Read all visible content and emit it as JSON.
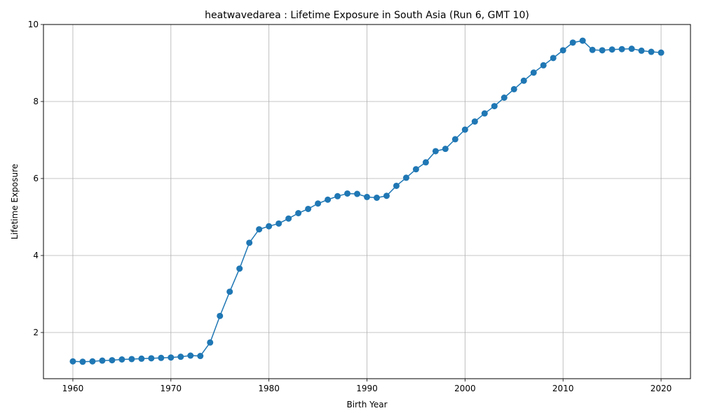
{
  "chart_data": {
    "type": "line",
    "title": "heatwavedarea : Lifetime Exposure in South Asia (Run 6, GMT 10)",
    "xlabel": "Birth Year",
    "ylabel": "Lifetime Exposure",
    "xlim": [
      1957,
      2023
    ],
    "ylim": [
      0.8,
      10
    ],
    "x_ticks": [
      1960,
      1970,
      1980,
      1990,
      2000,
      2010,
      2020
    ],
    "y_ticks": [
      2,
      4,
      6,
      8,
      10
    ],
    "grid": true,
    "marker": "circle",
    "colors": {
      "series": "#1f77b4",
      "grid": "#b0b0b0"
    },
    "series": [
      {
        "x": [
          1960,
          1961,
          1962,
          1963,
          1964,
          1965,
          1966,
          1967,
          1968,
          1969,
          1970,
          1971,
          1972,
          1973,
          1974,
          1975,
          1976,
          1977,
          1978,
          1979,
          1980,
          1981,
          1982,
          1983,
          1984,
          1985,
          1986,
          1987,
          1988,
          1989,
          1990,
          1991,
          1992,
          1993,
          1994,
          1995,
          1996,
          1997,
          1998,
          1999,
          2000,
          2001,
          2002,
          2003,
          2004,
          2005,
          2006,
          2007,
          2008,
          2009,
          2010,
          2011,
          2012,
          2013,
          2014,
          2015,
          2016,
          2017,
          2018,
          2019,
          2020
        ],
        "values": [
          1.25,
          1.24,
          1.25,
          1.27,
          1.28,
          1.3,
          1.31,
          1.32,
          1.33,
          1.34,
          1.35,
          1.37,
          1.4,
          1.39,
          1.74,
          2.43,
          3.06,
          3.66,
          4.33,
          4.68,
          4.76,
          4.83,
          4.96,
          5.1,
          5.21,
          5.35,
          5.45,
          5.54,
          5.61,
          5.6,
          5.52,
          5.5,
          5.55,
          5.81,
          6.02,
          6.24,
          6.42,
          6.71,
          6.77,
          7.02,
          7.27,
          7.48,
          7.69,
          7.88,
          8.1,
          8.32,
          8.54,
          8.75,
          8.94,
          9.13,
          9.33,
          9.53,
          9.58,
          9.34,
          9.33,
          9.35,
          9.36,
          9.37,
          9.32,
          9.29,
          9.27
        ]
      }
    ]
  }
}
